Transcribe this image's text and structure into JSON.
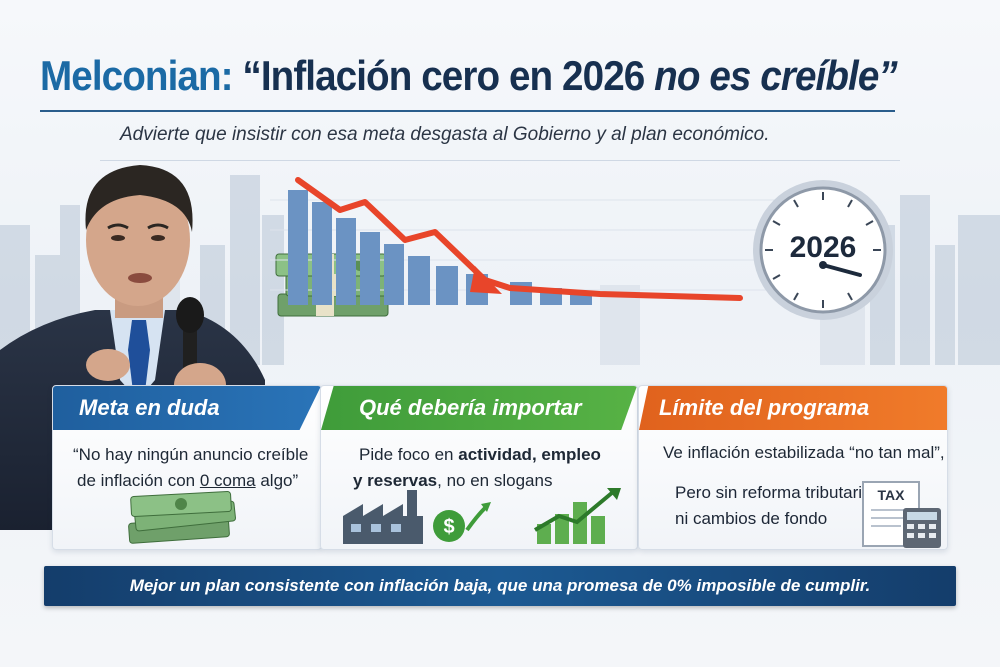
{
  "header": {
    "title_name": "Melconian:",
    "title_quote_part1": "“Inflación cero en 2026",
    "title_quote_part2": "no es creíble”",
    "subtitle": "Advierte que insistir con esa meta desgasta al Gobierno y al plan económico."
  },
  "graphic": {
    "clock_year": "2026",
    "trend": "decreasing",
    "accent_red": "#e8452a",
    "bar_blue": "#5b86b9"
  },
  "cards": [
    {
      "title": "Meta en duda",
      "color": "#1f5f9e",
      "line1": "“No hay ningún anuncio creíble",
      "line2_a": "de inflación con ",
      "line2_b": "0 coma",
      "line2_c": " algo”"
    },
    {
      "title": "Qué debería importar",
      "color": "#3f9c3a",
      "line1_a": "Pide foco en ",
      "line1_b": "actividad, empleo",
      "line2_a": "y reservas",
      "line2_b": ", no en slogans"
    },
    {
      "title": "Límite del programa",
      "color": "#e0621d",
      "line1": "Ve inflación estabilizada “no tan mal”,",
      "line2": "Pero sin reforma tributaria",
      "line3": "ni cambios de fondo",
      "tax_label": "TAX"
    }
  ],
  "banner": {
    "text": "Mejor un plan consistente con inflación baja, que una promesa de 0% imposible de cumplir.",
    "color": "#143d6b"
  }
}
